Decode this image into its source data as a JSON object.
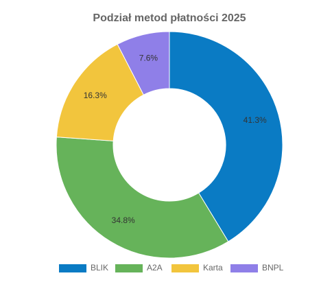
{
  "chart_data": {
    "type": "donut",
    "title": "Podział metod płatności 2025",
    "categories": [
      "BLIK",
      "A2A",
      "Karta",
      "BNPL"
    ],
    "values": [
      41.3,
      34.8,
      16.3,
      7.6
    ],
    "value_labels": [
      "41.3%",
      "34.8%",
      "16.3%",
      "7.6%"
    ],
    "colors": [
      "#0a7bc4",
      "#66b35a",
      "#f2c53d",
      "#8f7fe8"
    ],
    "legend": "bottom"
  }
}
